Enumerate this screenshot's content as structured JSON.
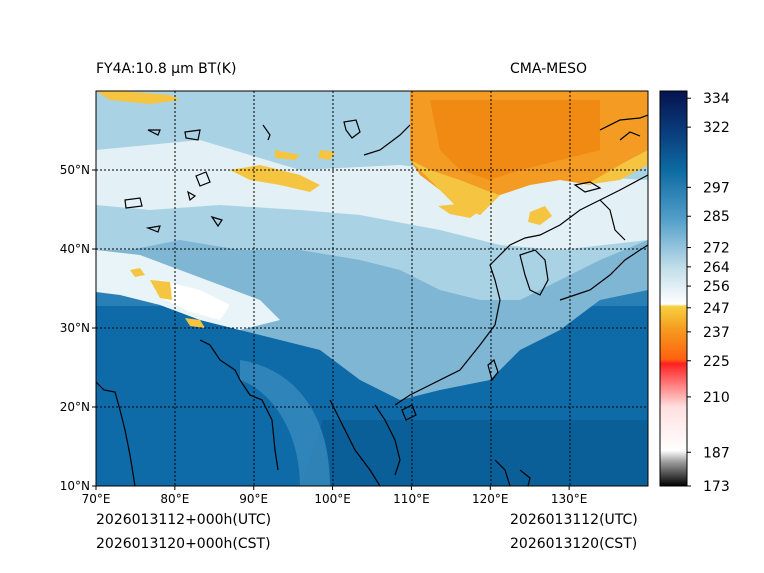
{
  "title_left": "FY4A:10.8 µm BT(K)",
  "title_right": "CMA-MESO",
  "footer": {
    "left_line1": "2026013112+000h(UTC)",
    "left_line2": "2026013120+000h(CST)",
    "right_line1": "2026013112(UTC)",
    "right_line2": "2026013120(CST)"
  },
  "map": {
    "lon_range": [
      70,
      140
    ],
    "lat_range": [
      10,
      60
    ],
    "lon_ticks": [
      70,
      80,
      90,
      100,
      110,
      120,
      130
    ],
    "lon_labels": [
      "70°E",
      "80°E",
      "90°E",
      "100°E",
      "110°E",
      "120°E",
      "130°E"
    ],
    "lat_ticks": [
      10,
      20,
      30,
      40,
      50
    ],
    "lat_labels": [
      "10°N",
      "20°N",
      "30°N",
      "40°N",
      "50°N"
    ]
  },
  "colorbar": {
    "range": [
      173,
      337
    ],
    "tick_values": [
      173,
      187,
      210,
      225,
      237,
      247,
      256,
      264,
      272,
      285,
      297,
      322,
      334
    ],
    "tick_labels": [
      "173",
      "187",
      "210",
      "225",
      "237",
      "247",
      "256",
      "264",
      "272",
      "285",
      "297",
      "322",
      "334"
    ],
    "colors": {
      "deep_blue": "#08175e",
      "ocean_blue": "#0f6aa8",
      "mid_blue": "#3a8fc0",
      "light_blue": "#9ecbe0",
      "white": "#f3f8fa",
      "yellow": "#f5c542",
      "orange": "#f08a12",
      "red": "#ff0000",
      "pink": "#ffd6d6",
      "black": "#000000"
    }
  }
}
